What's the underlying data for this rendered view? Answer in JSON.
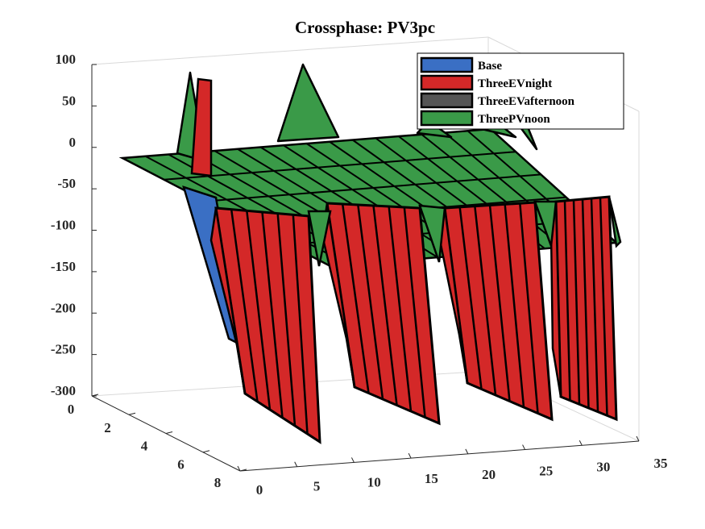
{
  "chart_data": {
    "type": "surface3d",
    "title": "Crossphase: PV3pc",
    "xlabel": "",
    "ylabel": "",
    "zlabel": "",
    "x_ticks": [
      "0",
      "5",
      "10",
      "15",
      "20",
      "25",
      "30",
      "35"
    ],
    "y_ticks": [
      "0",
      "2",
      "4",
      "6",
      "8"
    ],
    "z_ticks": [
      "100",
      "50",
      "0",
      "-50",
      "-100",
      "-150",
      "-200",
      "-250",
      "-300"
    ],
    "xlim": [
      0,
      35
    ],
    "ylim": [
      0,
      8
    ],
    "zlim": [
      -300,
      100
    ],
    "legend_position": "top-right",
    "series": [
      {
        "name": "Base",
        "color": "#3a6fc4",
        "values": [
          0,
          -150,
          0,
          0,
          0,
          0,
          0,
          0,
          0,
          0,
          0,
          0,
          0,
          0,
          0,
          0,
          0,
          0,
          0,
          0,
          0,
          0,
          0,
          0,
          0,
          0,
          0,
          0,
          0,
          0,
          0,
          0
        ]
      },
      {
        "name": "ThreeEVnight",
        "color": "#d42828",
        "values": [
          0,
          90,
          -290,
          -290,
          -290,
          -290,
          -290,
          -290,
          -200,
          -290,
          -290,
          -290,
          -290,
          -290,
          -290,
          -290,
          -200,
          -290,
          -290,
          -290,
          -290,
          -290,
          -290,
          -290,
          -200,
          -290,
          -290,
          -290,
          -290,
          -290,
          -290,
          -290
        ]
      },
      {
        "name": "ThreeEVafternoon",
        "color": "#555555",
        "values": []
      },
      {
        "name": "ThreePVnoon",
        "color": "#3a9a48",
        "values": [
          0,
          90,
          0,
          0,
          0,
          0,
          0,
          0,
          0,
          -60,
          100,
          0,
          0,
          0,
          0,
          0,
          0,
          -60,
          0,
          0,
          0,
          0,
          0,
          0,
          0,
          -60,
          0,
          0,
          0,
          0,
          0,
          -60
        ]
      }
    ]
  }
}
